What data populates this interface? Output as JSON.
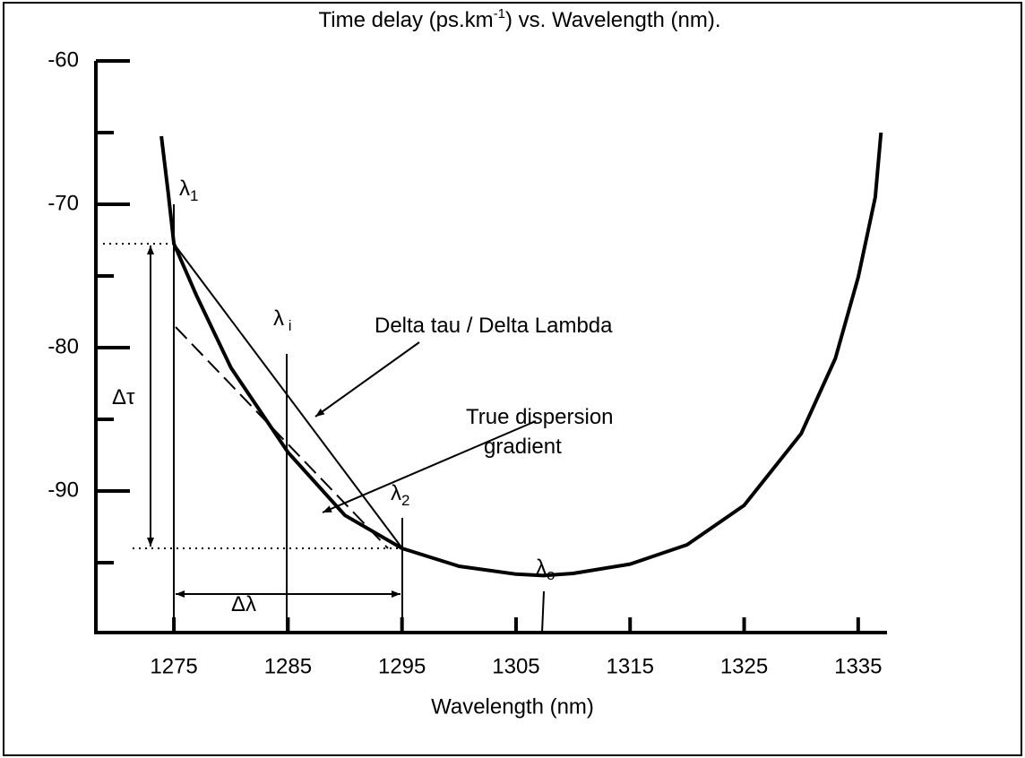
{
  "chart_data": {
    "type": "line",
    "title": {
      "main": "Time delay (ps.km",
      "sup": "-1",
      "rest": ") vs. Wavelength (nm)."
    },
    "xlabel": "Wavelength  (nm)",
    "x": [
      1273.9,
      1274.5,
      1275,
      1277,
      1280,
      1285,
      1290,
      1295,
      1300,
      1305,
      1307.4,
      1310,
      1315,
      1320,
      1325,
      1330,
      1333,
      1335,
      1336.5,
      1337
    ],
    "series": [
      {
        "color": "#000000",
        "values": [
          -65.25,
          -69.2,
          -72.75,
          -76.4,
          -81.4,
          -87.3,
          -91.7,
          -94,
          -95.25,
          -95.8,
          -95.9,
          -95.75,
          -95.1,
          -93.75,
          -91,
          -86,
          -80.75,
          -75.1,
          -69.5,
          -65
        ]
      }
    ],
    "xlim": [
      1268,
      1338
    ],
    "ylim": [
      -100,
      -60
    ],
    "xticks": [
      1275,
      1285,
      1295,
      1305,
      1315,
      1325,
      1335
    ],
    "yticks": [
      -60,
      -70,
      -80,
      -90
    ],
    "yticks_minor": [
      -65,
      -75,
      -85,
      -95
    ],
    "annotations": [
      {
        "text": "λ",
        "sub": "1"
      },
      {
        "text": "λ",
        "sub": " i"
      },
      {
        "text": "λ",
        "sub": "2"
      },
      {
        "text": "λ",
        "sub": "o"
      },
      {
        "text": "Delta tau / Delta Lambda"
      },
      {
        "text": "True dispersion"
      },
      {
        "text": "gradient"
      },
      {
        "text": "Δτ"
      },
      {
        "text": "Δλ"
      }
    ]
  }
}
